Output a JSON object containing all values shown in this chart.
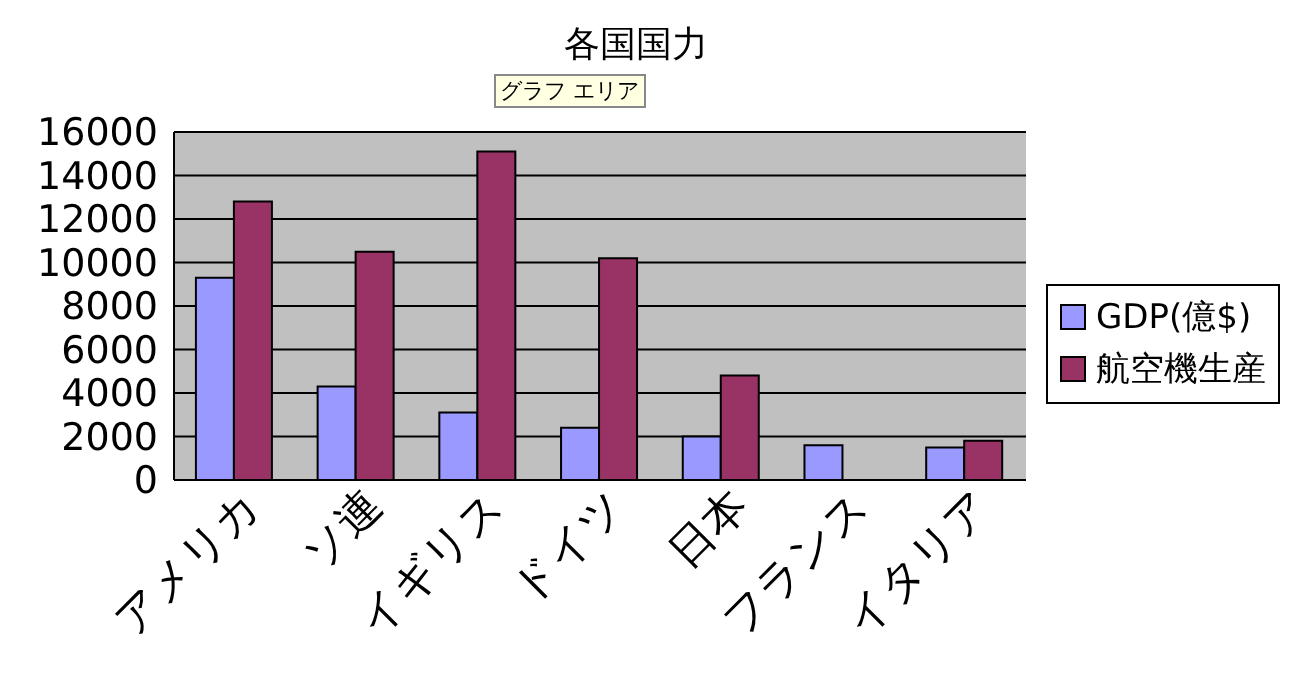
{
  "chart_data": {
    "type": "bar",
    "title": "各国国力",
    "annotations": [
      "グラフ エリア"
    ],
    "categories": [
      "アメリカ",
      "ソ連",
      "イギリス",
      "ドイツ",
      "日本",
      "フランス",
      "イタリア"
    ],
    "series": [
      {
        "name": "GDP(億$)",
        "color": "#9999ff",
        "values": [
          9300,
          4300,
          3100,
          2400,
          2000,
          1600,
          1500
        ]
      },
      {
        "name": "航空機生産",
        "color": "#993366",
        "values": [
          12800,
          10500,
          15100,
          10200,
          4800,
          null,
          1800
        ]
      }
    ],
    "ylim": [
      0,
      16000
    ],
    "yticks": [
      0,
      2000,
      4000,
      6000,
      8000,
      10000,
      12000,
      14000,
      16000
    ],
    "grid": "y",
    "legend": "right"
  }
}
